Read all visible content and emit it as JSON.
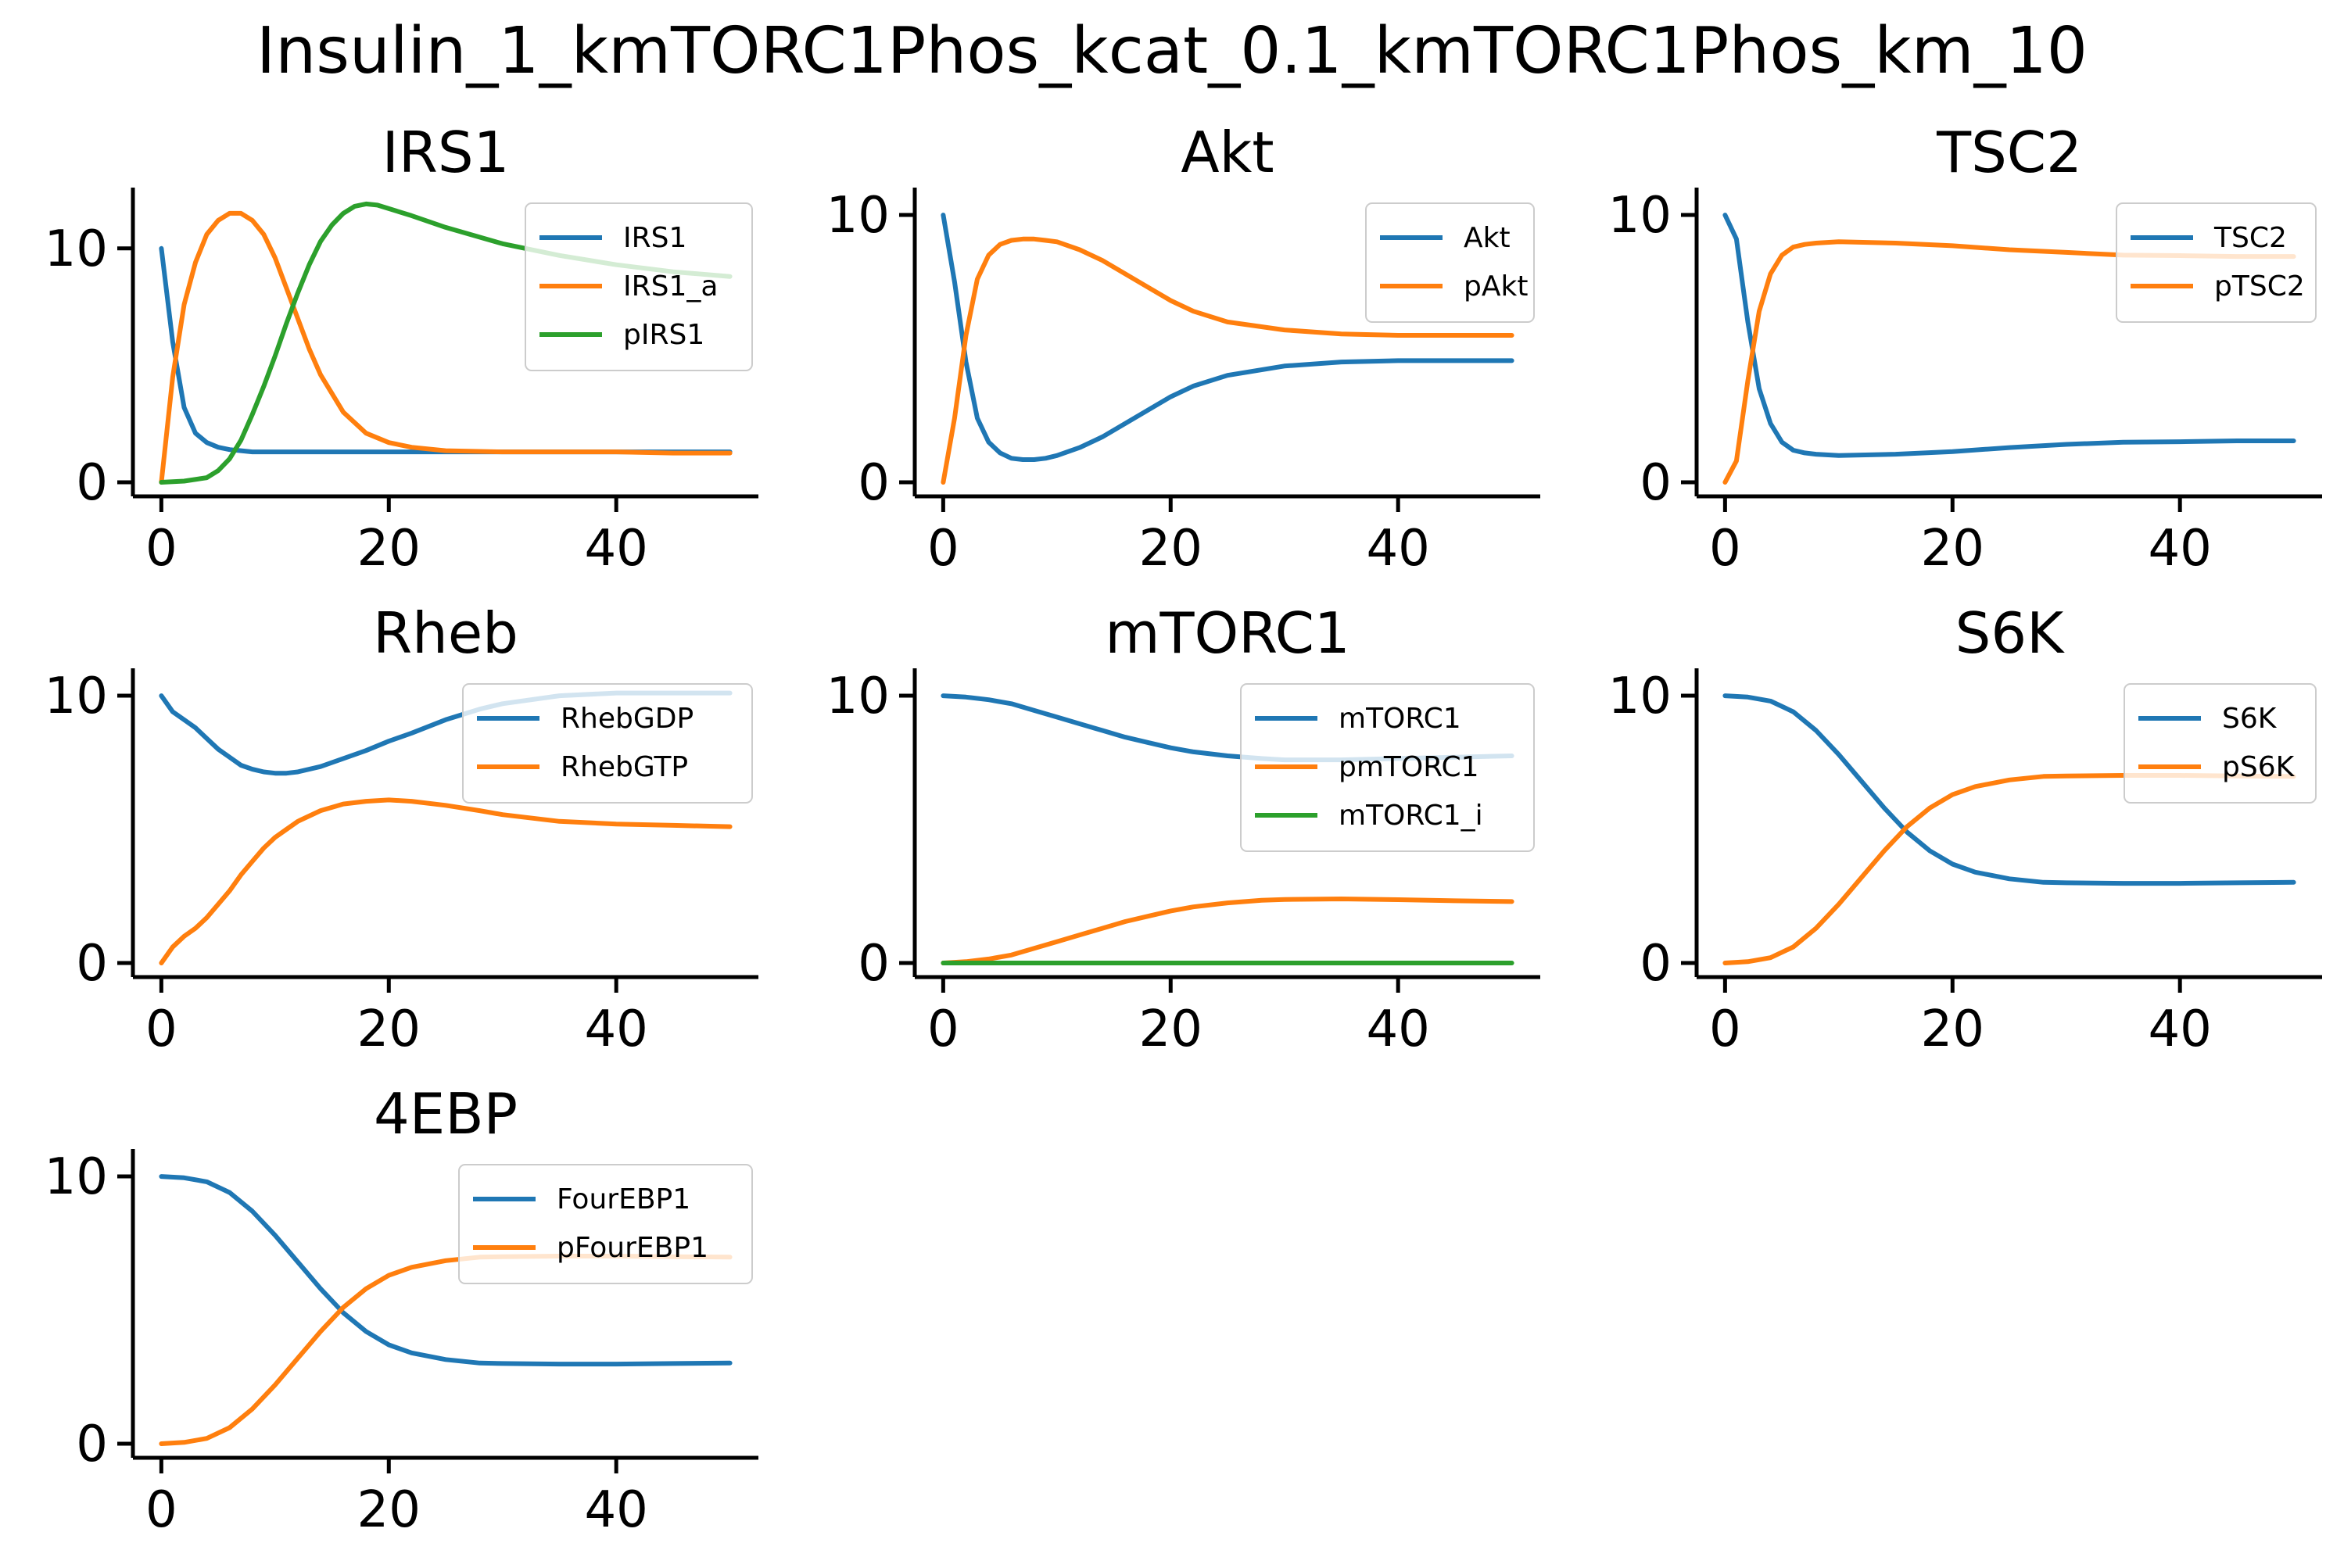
{
  "figure": {
    "title": "Insulin_1_kmTORC1Phos_kcat_0.1_kmTORC1Phos_km_10"
  },
  "colors": {
    "blue": "#1f77b4",
    "orange": "#ff7f0e",
    "green": "#2ca02c"
  },
  "chart_data": [
    {
      "type": "line",
      "title": "IRS1",
      "xlim": [
        0,
        50
      ],
      "ylim": [
        0,
        12
      ],
      "xticks": [
        0,
        20,
        40
      ],
      "yticks": [
        0,
        10
      ],
      "legend": "upper right",
      "series": [
        {
          "name": "IRS1",
          "color": "blue",
          "x": [
            0,
            1,
            2,
            3,
            4,
            5,
            6,
            7,
            8,
            10,
            15,
            20,
            30,
            40,
            50
          ],
          "y": [
            10,
            6,
            3.2,
            2.1,
            1.7,
            1.5,
            1.4,
            1.35,
            1.3,
            1.3,
            1.3,
            1.3,
            1.3,
            1.3,
            1.3
          ]
        },
        {
          "name": "IRS1_a",
          "color": "orange",
          "x": [
            0,
            1,
            2,
            3,
            4,
            5,
            6,
            7,
            8,
            9,
            10,
            11,
            12,
            13,
            14,
            16,
            18,
            20,
            22,
            25,
            30,
            35,
            40,
            45,
            50
          ],
          "y": [
            0,
            4.5,
            7.6,
            9.4,
            10.6,
            11.2,
            11.5,
            11.5,
            11.2,
            10.6,
            9.6,
            8.3,
            7.0,
            5.7,
            4.6,
            3.0,
            2.1,
            1.7,
            1.5,
            1.35,
            1.3,
            1.3,
            1.3,
            1.25,
            1.25
          ]
        },
        {
          "name": "pIRS1",
          "color": "green",
          "x": [
            0,
            2,
            4,
            5,
            6,
            7,
            8,
            9,
            10,
            11,
            12,
            13,
            14,
            15,
            16,
            17,
            18,
            19,
            20,
            22,
            25,
            30,
            35,
            40,
            45,
            50
          ],
          "y": [
            0,
            0.05,
            0.2,
            0.5,
            1.0,
            1.8,
            2.9,
            4.1,
            5.4,
            6.8,
            8.1,
            9.3,
            10.3,
            11.0,
            11.5,
            11.8,
            11.9,
            11.85,
            11.7,
            11.4,
            10.9,
            10.2,
            9.7,
            9.3,
            9.0,
            8.8
          ]
        }
      ]
    },
    {
      "type": "line",
      "title": "Akt",
      "xlim": [
        0,
        50
      ],
      "ylim": [
        0,
        10.5
      ],
      "xticks": [
        0,
        20,
        40
      ],
      "yticks": [
        0,
        10
      ],
      "legend": "upper right",
      "series": [
        {
          "name": "Akt",
          "color": "blue",
          "x": [
            0,
            1,
            2,
            3,
            4,
            5,
            6,
            7,
            8,
            9,
            10,
            12,
            14,
            16,
            18,
            20,
            22,
            25,
            30,
            35,
            40,
            45,
            50
          ],
          "y": [
            10,
            7.5,
            4.5,
            2.4,
            1.5,
            1.1,
            0.9,
            0.85,
            0.85,
            0.9,
            1.0,
            1.3,
            1.7,
            2.2,
            2.7,
            3.2,
            3.6,
            4.0,
            4.35,
            4.5,
            4.55,
            4.55,
            4.55
          ]
        },
        {
          "name": "pAkt",
          "color": "orange",
          "x": [
            0,
            1,
            2,
            3,
            4,
            5,
            6,
            7,
            8,
            9,
            10,
            12,
            14,
            16,
            18,
            20,
            22,
            25,
            30,
            35,
            40,
            45,
            50
          ],
          "y": [
            0,
            2.4,
            5.5,
            7.6,
            8.5,
            8.9,
            9.05,
            9.1,
            9.1,
            9.05,
            9.0,
            8.7,
            8.3,
            7.8,
            7.3,
            6.8,
            6.4,
            6.0,
            5.7,
            5.55,
            5.5,
            5.5,
            5.5
          ]
        }
      ]
    },
    {
      "type": "line",
      "title": "TSC2",
      "xlim": [
        0,
        50
      ],
      "ylim": [
        0,
        10.5
      ],
      "xticks": [
        0,
        20,
        40
      ],
      "yticks": [
        0,
        10
      ],
      "legend": "upper right",
      "series": [
        {
          "name": "TSC2",
          "color": "blue",
          "x": [
            0,
            1,
            2,
            3,
            4,
            5,
            6,
            7,
            8,
            10,
            15,
            20,
            25,
            30,
            35,
            40,
            45,
            50
          ],
          "y": [
            10,
            9.1,
            6.0,
            3.5,
            2.2,
            1.5,
            1.2,
            1.1,
            1.05,
            1.0,
            1.05,
            1.15,
            1.3,
            1.42,
            1.5,
            1.52,
            1.55,
            1.55
          ]
        },
        {
          "name": "pTSC2",
          "color": "orange",
          "x": [
            0,
            1,
            2,
            3,
            4,
            5,
            6,
            7,
            8,
            10,
            15,
            20,
            25,
            30,
            35,
            40,
            45,
            50
          ],
          "y": [
            0,
            0.8,
            3.8,
            6.4,
            7.8,
            8.5,
            8.8,
            8.9,
            8.95,
            9.0,
            8.95,
            8.85,
            8.7,
            8.6,
            8.5,
            8.48,
            8.45,
            8.45
          ]
        }
      ]
    },
    {
      "type": "line",
      "title": "Rheb",
      "xlim": [
        0,
        50
      ],
      "ylim": [
        0,
        10.5
      ],
      "xticks": [
        0,
        20,
        40
      ],
      "yticks": [
        0,
        10
      ],
      "legend": "upper right",
      "series": [
        {
          "name": "RhebGDP",
          "color": "blue",
          "x": [
            0,
            1,
            2,
            3,
            4,
            5,
            6,
            7,
            8,
            9,
            10,
            11,
            12,
            14,
            16,
            18,
            20,
            22,
            25,
            28,
            30,
            35,
            40,
            45,
            50
          ],
          "y": [
            10,
            9.4,
            9.1,
            8.8,
            8.4,
            8.0,
            7.7,
            7.4,
            7.25,
            7.15,
            7.1,
            7.1,
            7.15,
            7.35,
            7.65,
            7.95,
            8.3,
            8.6,
            9.1,
            9.5,
            9.7,
            10.0,
            10.1,
            10.1,
            10.1
          ]
        },
        {
          "name": "RhebGTP",
          "color": "orange",
          "x": [
            0,
            1,
            2,
            3,
            4,
            5,
            6,
            7,
            8,
            9,
            10,
            11,
            12,
            14,
            16,
            18,
            20,
            22,
            25,
            28,
            30,
            35,
            40,
            45,
            50
          ],
          "y": [
            0,
            0.6,
            1.0,
            1.3,
            1.7,
            2.2,
            2.7,
            3.3,
            3.8,
            4.3,
            4.7,
            5.0,
            5.3,
            5.7,
            5.95,
            6.05,
            6.1,
            6.05,
            5.9,
            5.7,
            5.55,
            5.3,
            5.2,
            5.15,
            5.1
          ]
        }
      ]
    },
    {
      "type": "line",
      "title": "mTORC1",
      "xlim": [
        0,
        50
      ],
      "ylim": [
        0,
        10.5
      ],
      "xticks": [
        0,
        20,
        40
      ],
      "yticks": [
        0,
        10
      ],
      "legend": "upper right",
      "series": [
        {
          "name": "mTORC1",
          "color": "blue",
          "x": [
            0,
            2,
            4,
            6,
            8,
            10,
            12,
            14,
            16,
            18,
            20,
            22,
            25,
            28,
            30,
            35,
            40,
            45,
            50
          ],
          "y": [
            10,
            9.95,
            9.85,
            9.7,
            9.45,
            9.2,
            8.95,
            8.7,
            8.45,
            8.25,
            8.05,
            7.9,
            7.75,
            7.65,
            7.6,
            7.6,
            7.65,
            7.7,
            7.75
          ]
        },
        {
          "name": "pmTORC1",
          "color": "orange",
          "x": [
            0,
            2,
            4,
            6,
            8,
            10,
            12,
            14,
            16,
            18,
            20,
            22,
            25,
            28,
            30,
            35,
            40,
            45,
            50
          ],
          "y": [
            0,
            0.05,
            0.15,
            0.3,
            0.55,
            0.8,
            1.05,
            1.3,
            1.55,
            1.75,
            1.95,
            2.1,
            2.25,
            2.35,
            2.38,
            2.4,
            2.37,
            2.33,
            2.3
          ]
        },
        {
          "name": "mTORC1_i",
          "color": "green",
          "x": [
            0,
            10,
            20,
            30,
            40,
            50
          ],
          "y": [
            0,
            0,
            0,
            0,
            0,
            0
          ]
        }
      ]
    },
    {
      "type": "line",
      "title": "S6K",
      "xlim": [
        0,
        50
      ],
      "ylim": [
        0,
        10.5
      ],
      "xticks": [
        0,
        20,
        40
      ],
      "yticks": [
        0,
        10
      ],
      "legend": "upper right",
      "series": [
        {
          "name": "S6K",
          "color": "blue",
          "x": [
            0,
            2,
            4,
            6,
            8,
            10,
            12,
            14,
            16,
            18,
            20,
            22,
            25,
            28,
            30,
            35,
            40,
            45,
            50
          ],
          "y": [
            10,
            9.95,
            9.8,
            9.4,
            8.7,
            7.8,
            6.8,
            5.8,
            4.9,
            4.2,
            3.7,
            3.4,
            3.15,
            3.02,
            3.0,
            2.98,
            2.98,
            3.0,
            3.02
          ]
        },
        {
          "name": "pS6K",
          "color": "orange",
          "x": [
            0,
            2,
            4,
            6,
            8,
            10,
            12,
            14,
            16,
            18,
            20,
            22,
            25,
            28,
            30,
            35,
            40,
            45,
            50
          ],
          "y": [
            0,
            0.05,
            0.2,
            0.6,
            1.3,
            2.2,
            3.2,
            4.2,
            5.1,
            5.8,
            6.3,
            6.6,
            6.85,
            6.98,
            7.0,
            7.02,
            7.02,
            7.0,
            6.98
          ]
        }
      ]
    },
    {
      "type": "line",
      "title": "4EBP",
      "xlim": [
        0,
        50
      ],
      "ylim": [
        0,
        10.5
      ],
      "xticks": [
        0,
        20,
        40
      ],
      "yticks": [
        0,
        10
      ],
      "legend": "upper right",
      "series": [
        {
          "name": "FourEBP1",
          "color": "blue",
          "x": [
            0,
            2,
            4,
            6,
            8,
            10,
            12,
            14,
            16,
            18,
            20,
            22,
            25,
            28,
            30,
            35,
            40,
            45,
            50
          ],
          "y": [
            10,
            9.95,
            9.8,
            9.4,
            8.7,
            7.8,
            6.8,
            5.8,
            4.9,
            4.2,
            3.7,
            3.4,
            3.15,
            3.02,
            3.0,
            2.98,
            2.98,
            3.0,
            3.02
          ]
        },
        {
          "name": "pFourEBP1",
          "color": "orange",
          "x": [
            0,
            2,
            4,
            6,
            8,
            10,
            12,
            14,
            16,
            18,
            20,
            22,
            25,
            28,
            30,
            35,
            40,
            45,
            50
          ],
          "y": [
            0,
            0.05,
            0.2,
            0.6,
            1.3,
            2.2,
            3.2,
            4.2,
            5.1,
            5.8,
            6.3,
            6.6,
            6.85,
            6.98,
            7.0,
            7.02,
            7.02,
            7.0,
            6.98
          ]
        }
      ]
    }
  ]
}
